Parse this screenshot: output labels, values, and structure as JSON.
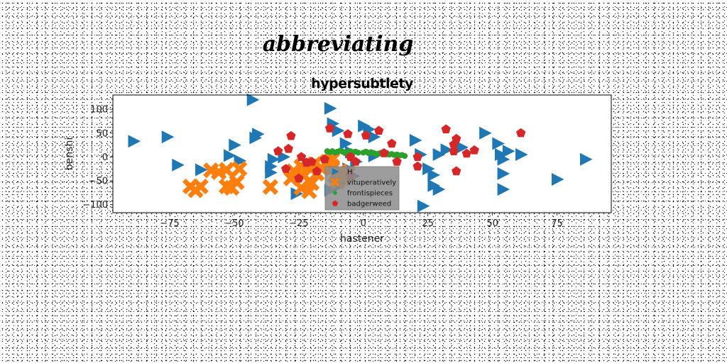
{
  "chart_data": {
    "type": "scatter",
    "suptitle": "abbreviating",
    "title": "hypersubtlety",
    "xlabel": "hastener",
    "ylabel": "benshi",
    "xlim": [
      -97,
      96
    ],
    "ylim": [
      -117,
      130
    ],
    "xticks": [
      -75,
      -50,
      -25,
      0,
      25,
      50,
      75
    ],
    "yticks": [
      -100,
      -50,
      0,
      50,
      100
    ],
    "xtick_labels": [
      "−75",
      "−50",
      "−25",
      "0",
      "25",
      "50",
      "75"
    ],
    "ytick_labels": [
      "−100",
      "−50",
      "0",
      "50",
      "100"
    ],
    "grid": false,
    "legend_position": "lower-center",
    "series": [
      {
        "name": "H",
        "marker": "triangle-right",
        "color": "#1f77b4",
        "points": [
          [
            -89,
            33
          ],
          [
            -76,
            42
          ],
          [
            -72,
            -17
          ],
          [
            -63,
            -27
          ],
          [
            -52,
            3
          ],
          [
            -50,
            25
          ],
          [
            -48,
            -8
          ],
          [
            -43,
            120
          ],
          [
            -41,
            48
          ],
          [
            -42,
            40
          ],
          [
            -36,
            -33
          ],
          [
            -36,
            -20
          ],
          [
            -35,
            -5
          ],
          [
            -31,
            0
          ],
          [
            -13,
            102
          ],
          [
            -12,
            70
          ],
          [
            -10,
            55
          ],
          [
            -7,
            28
          ],
          [
            -5,
            10
          ],
          [
            0,
            65
          ],
          [
            2,
            58
          ],
          [
            4,
            42
          ],
          [
            4,
            2
          ],
          [
            -3,
            -10
          ],
          [
            -6,
            -25
          ],
          [
            -4,
            -40
          ],
          [
            -7,
            -50
          ],
          [
            -10,
            -62
          ],
          [
            -13,
            -70
          ],
          [
            -26,
            -77
          ],
          [
            20,
            35
          ],
          [
            22,
            5
          ],
          [
            23,
            -103
          ],
          [
            25,
            -25
          ],
          [
            27,
            -38
          ],
          [
            27,
            -60
          ],
          [
            29,
            -68
          ],
          [
            29,
            5
          ],
          [
            32,
            15
          ],
          [
            38,
            20
          ],
          [
            47,
            50
          ],
          [
            52,
            28
          ],
          [
            53,
            5
          ],
          [
            54,
            -5
          ],
          [
            54,
            -35
          ],
          [
            54,
            -68
          ],
          [
            56,
            12
          ],
          [
            61,
            5
          ],
          [
            75,
            -47
          ],
          [
            86,
            -5
          ]
        ]
      },
      {
        "name": "vituperatively",
        "marker": "x",
        "color": "#ff7f0e",
        "points": [
          [
            -67,
            -62
          ],
          [
            -65,
            -70
          ],
          [
            -63,
            -62
          ],
          [
            -59,
            -28
          ],
          [
            -56,
            -32
          ],
          [
            -53,
            -27
          ],
          [
            -53,
            -62
          ],
          [
            -51,
            -65
          ],
          [
            -49,
            -53
          ],
          [
            -48,
            -25
          ],
          [
            -36,
            -63
          ],
          [
            -28,
            -45
          ],
          [
            -27,
            -30
          ],
          [
            -24,
            -20
          ],
          [
            -23,
            -40
          ],
          [
            -24,
            -65
          ],
          [
            -21,
            -72
          ],
          [
            -20,
            -55
          ],
          [
            -18,
            -35
          ],
          [
            -16,
            -25
          ],
          [
            -14,
            -10
          ],
          [
            -12,
            -20
          ],
          [
            -11,
            -40
          ],
          [
            -9,
            -30
          ],
          [
            -8,
            -45
          ],
          [
            -6,
            -35
          ],
          [
            -21,
            -22
          ],
          [
            -19,
            -15
          ],
          [
            -10,
            -52
          ],
          [
            -12,
            -5
          ]
        ]
      },
      {
        "name": "frontispieces",
        "marker": "circle",
        "color": "#2ca02c",
        "points": [
          [
            -14,
            12
          ],
          [
            -12,
            12
          ],
          [
            -10,
            11
          ],
          [
            -8,
            11
          ],
          [
            -6,
            10
          ],
          [
            -4,
            10
          ],
          [
            -2,
            9
          ],
          [
            0,
            9
          ],
          [
            2,
            8
          ],
          [
            4,
            8
          ],
          [
            6,
            7
          ],
          [
            8,
            6
          ],
          [
            10,
            5
          ],
          [
            12,
            4
          ],
          [
            14,
            3
          ],
          [
            -13,
            10
          ],
          [
            -9,
            13
          ],
          [
            -5,
            12
          ],
          [
            1,
            11
          ],
          [
            5,
            6
          ],
          [
            9,
            8
          ],
          [
            11,
            6
          ],
          [
            13,
            5
          ],
          [
            15,
            4
          ],
          [
            -7,
            8
          ],
          [
            -3,
            11
          ],
          [
            3,
            10
          ],
          [
            7,
            9
          ],
          [
            -11,
            9
          ],
          [
            16,
            2
          ]
        ]
      },
      {
        "name": "badgerweed",
        "marker": "pentagon",
        "color": "#d62728",
        "points": [
          [
            -33,
            12
          ],
          [
            -29,
            17
          ],
          [
            -28,
            44
          ],
          [
            -24,
            0
          ],
          [
            -22,
            -12
          ],
          [
            -20,
            -10
          ],
          [
            -18,
            -30
          ],
          [
            -15,
            -5
          ],
          [
            -13,
            60
          ],
          [
            -6,
            48
          ],
          [
            -5,
            0
          ],
          [
            -3,
            -10
          ],
          [
            -5,
            -38
          ],
          [
            1,
            45
          ],
          [
            6,
            55
          ],
          [
            8,
            8
          ],
          [
            11,
            28
          ],
          [
            13,
            -10
          ],
          [
            21,
            0
          ],
          [
            21,
            -20
          ],
          [
            32,
            58
          ],
          [
            35,
            26
          ],
          [
            36,
            38
          ],
          [
            35,
            12
          ],
          [
            36,
            -30
          ],
          [
            40,
            7
          ],
          [
            43,
            14
          ],
          [
            61,
            50
          ],
          [
            -25,
            -45
          ],
          [
            -30,
            -25
          ]
        ]
      }
    ]
  }
}
